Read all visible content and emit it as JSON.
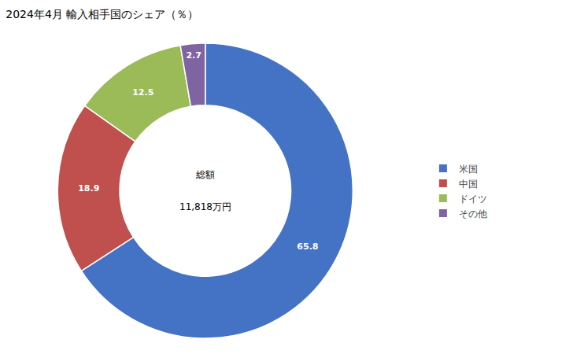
{
  "chart_data": {
    "type": "donut",
    "title": "2024年4月 輸入相手国のシェア（％）",
    "annotations": [
      "総額",
      "11,818万円"
    ],
    "categories": [
      "米国",
      "中国",
      "ドイツ",
      "その他"
    ],
    "values": [
      65.8,
      18.9,
      12.5,
      2.7
    ],
    "colors": [
      "#4472C4",
      "#C0504D",
      "#9BBB59",
      "#8064A2"
    ],
    "data_labels": true,
    "legend": "right"
  }
}
